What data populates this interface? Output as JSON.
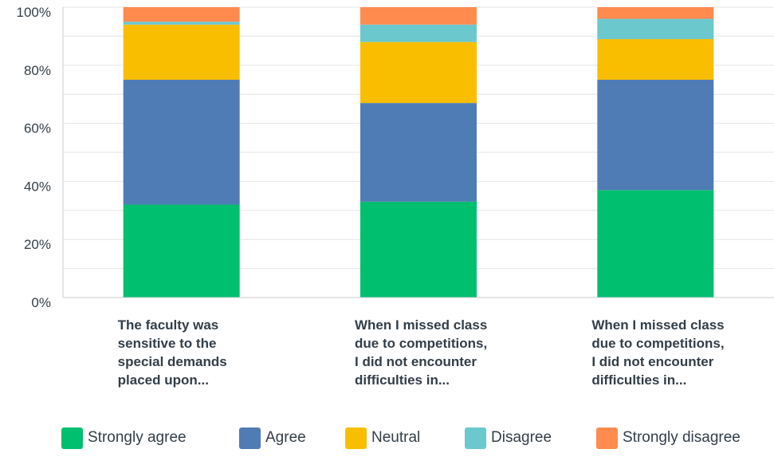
{
  "chart_data": {
    "type": "bar",
    "stacked": true,
    "categories": [
      [
        "The faculty was",
        "sensitive to the",
        "special demands",
        "placed upon..."
      ],
      [
        "When I missed class",
        "due to competitions,",
        "I did not encounter",
        "difficulties in..."
      ],
      [
        "When I missed class",
        "due to competitions,",
        "I did not encounter",
        "difficulties in..."
      ]
    ],
    "series": [
      {
        "name": "Strongly agree",
        "color": "#00bf6f",
        "values": [
          32,
          33,
          37
        ]
      },
      {
        "name": "Agree",
        "color": "#507cb6",
        "values": [
          43,
          34,
          38
        ]
      },
      {
        "name": "Neutral",
        "color": "#f9be00",
        "values": [
          19,
          21,
          14
        ]
      },
      {
        "name": "Disagree",
        "color": "#6bc8cd",
        "values": [
          1,
          6,
          7
        ]
      },
      {
        "name": "Strongly disagree",
        "color": "#ff8b4f",
        "values": [
          5,
          6,
          4
        ]
      }
    ],
    "ylim": [
      0,
      100
    ],
    "yticks": [
      "0%",
      "20%",
      "40%",
      "60%",
      "80%",
      "100%"
    ],
    "grid": true,
    "legend_position": "bottom"
  }
}
